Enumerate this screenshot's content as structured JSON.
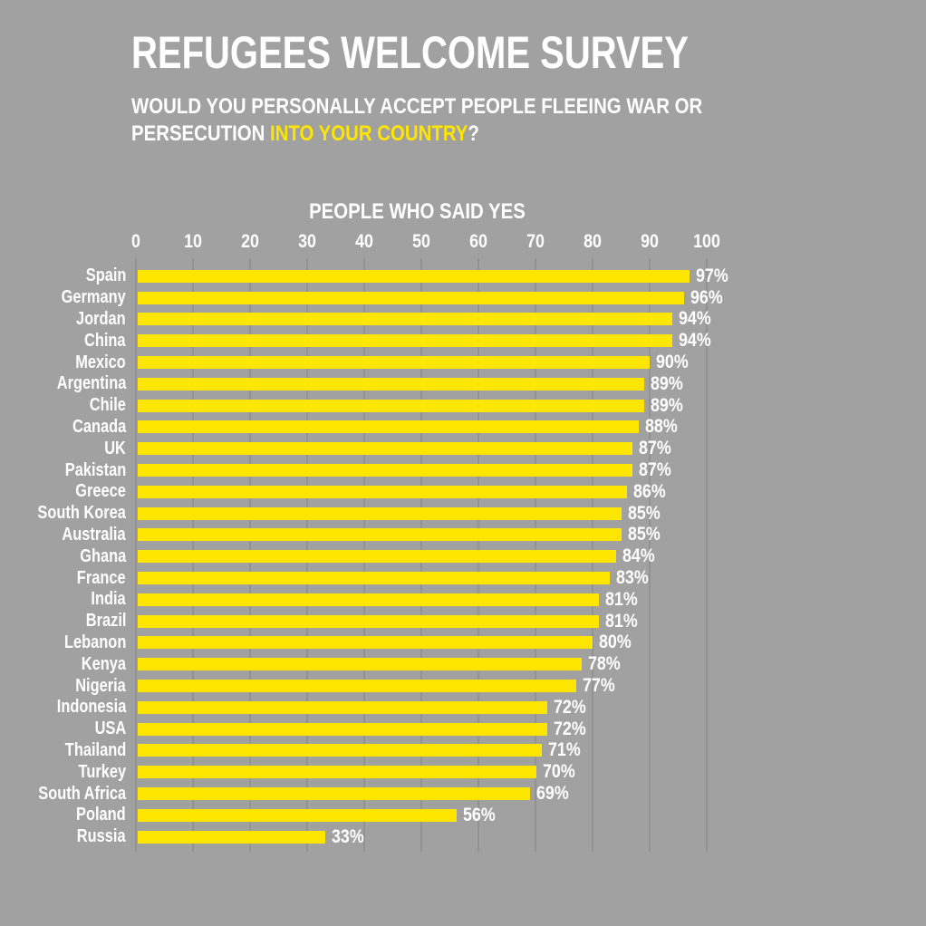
{
  "colors": {
    "background": "#A1A1A1",
    "bar": "#FFE600",
    "text": "#FFFFFF",
    "gridline": "#929292"
  },
  "header": {
    "title": "REFUGEES WELCOME SURVEY",
    "subtitle_line1": "WOULD YOU PERSONALLY ACCEPT PEOPLE FLEEING WAR OR",
    "subtitle_line2_prefix": "PERSECUTION ",
    "subtitle_line2_highlight": "INTO YOUR COUNTRY",
    "subtitle_line2_suffix": "?"
  },
  "chart_data": {
    "type": "bar",
    "orientation": "horizontal",
    "title": "PEOPLE WHO SAID YES",
    "categories": [
      "Spain",
      "Germany",
      "Jordan",
      "China",
      "Mexico",
      "Argentina",
      "Chile",
      "Canada",
      "UK",
      "Pakistan",
      "Greece",
      "South Korea",
      "Australia",
      "Ghana",
      "France",
      "India",
      "Brazil",
      "Lebanon",
      "Kenya",
      "Nigeria",
      "Indonesia",
      "USA",
      "Thailand",
      "Turkey",
      "South Africa",
      "Poland",
      "Russia"
    ],
    "values": [
      97,
      96,
      94,
      94,
      90,
      89,
      89,
      88,
      87,
      87,
      86,
      85,
      85,
      84,
      83,
      81,
      81,
      80,
      78,
      77,
      72,
      72,
      71,
      70,
      69,
      56,
      33
    ],
    "value_suffix": "%",
    "xlabel": "",
    "ylabel": "",
    "x_ticks": [
      0,
      10,
      20,
      30,
      40,
      50,
      60,
      70,
      80,
      90,
      100
    ],
    "xlim": [
      0,
      100
    ],
    "grid": true,
    "legend": false
  }
}
